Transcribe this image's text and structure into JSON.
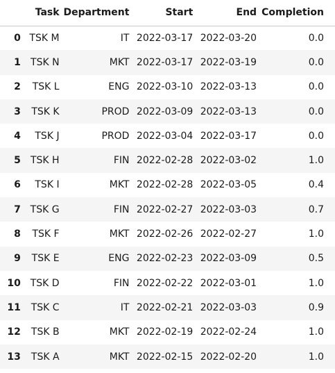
{
  "table": {
    "index_header": "",
    "columns": [
      "Task",
      "Department",
      "Start",
      "End",
      "Completion"
    ],
    "rows": [
      {
        "index": "0",
        "task": "TSK M",
        "department": "IT",
        "start": "2022-03-17",
        "end": "2022-03-20",
        "completion": "0.0"
      },
      {
        "index": "1",
        "task": "TSK N",
        "department": "MKT",
        "start": "2022-03-17",
        "end": "2022-03-19",
        "completion": "0.0"
      },
      {
        "index": "2",
        "task": "TSK L",
        "department": "ENG",
        "start": "2022-03-10",
        "end": "2022-03-13",
        "completion": "0.0"
      },
      {
        "index": "3",
        "task": "TSK K",
        "department": "PROD",
        "start": "2022-03-09",
        "end": "2022-03-13",
        "completion": "0.0"
      },
      {
        "index": "4",
        "task": "TSK J",
        "department": "PROD",
        "start": "2022-03-04",
        "end": "2022-03-17",
        "completion": "0.0"
      },
      {
        "index": "5",
        "task": "TSK H",
        "department": "FIN",
        "start": "2022-02-28",
        "end": "2022-03-02",
        "completion": "1.0"
      },
      {
        "index": "6",
        "task": "TSK I",
        "department": "MKT",
        "start": "2022-02-28",
        "end": "2022-03-05",
        "completion": "0.4"
      },
      {
        "index": "7",
        "task": "TSK G",
        "department": "FIN",
        "start": "2022-02-27",
        "end": "2022-03-03",
        "completion": "0.7"
      },
      {
        "index": "8",
        "task": "TSK F",
        "department": "MKT",
        "start": "2022-02-26",
        "end": "2022-02-27",
        "completion": "1.0"
      },
      {
        "index": "9",
        "task": "TSK E",
        "department": "ENG",
        "start": "2022-02-23",
        "end": "2022-03-09",
        "completion": "0.5"
      },
      {
        "index": "10",
        "task": "TSK D",
        "department": "FIN",
        "start": "2022-02-22",
        "end": "2022-03-01",
        "completion": "1.0"
      },
      {
        "index": "11",
        "task": "TSK C",
        "department": "IT",
        "start": "2022-02-21",
        "end": "2022-03-03",
        "completion": "0.9"
      },
      {
        "index": "12",
        "task": "TSK B",
        "department": "MKT",
        "start": "2022-02-19",
        "end": "2022-02-24",
        "completion": "1.0"
      },
      {
        "index": "13",
        "task": "TSK A",
        "department": "MKT",
        "start": "2022-02-15",
        "end": "2022-02-20",
        "completion": "1.0"
      }
    ]
  },
  "colors": {
    "stripe": "#f5f5f5",
    "header_rule": "#c8c8c8",
    "text": "#1a1a1a"
  }
}
